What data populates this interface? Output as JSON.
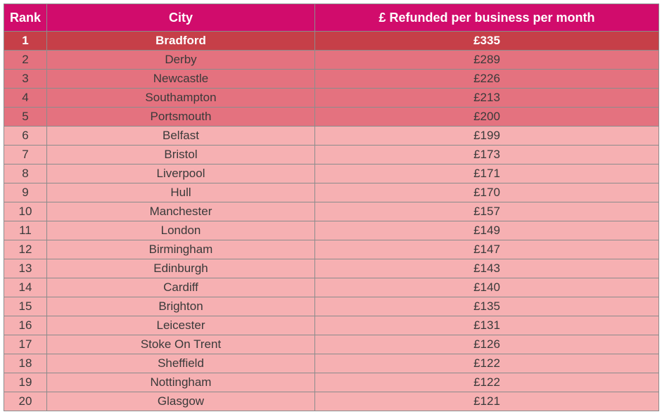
{
  "table": {
    "headers": {
      "rank": "Rank",
      "city": "City",
      "value": "£ Refunded per business per month"
    },
    "rows": [
      {
        "rank": "1",
        "city": "Bradford",
        "value": "£335",
        "tier": "top"
      },
      {
        "rank": "2",
        "city": "Derby",
        "value": "£289",
        "tier": "mid"
      },
      {
        "rank": "3",
        "city": "Newcastle",
        "value": "£226",
        "tier": "mid"
      },
      {
        "rank": "4",
        "city": "Southampton",
        "value": "£213",
        "tier": "mid"
      },
      {
        "rank": "5",
        "city": "Portsmouth",
        "value": "£200",
        "tier": "mid"
      },
      {
        "rank": "6",
        "city": "Belfast",
        "value": "£199",
        "tier": "low"
      },
      {
        "rank": "7",
        "city": "Bristol",
        "value": "£173",
        "tier": "low"
      },
      {
        "rank": "8",
        "city": "Liverpool",
        "value": "£171",
        "tier": "low"
      },
      {
        "rank": "9",
        "city": "Hull",
        "value": "£170",
        "tier": "low"
      },
      {
        "rank": "10",
        "city": "Manchester",
        "value": "£157",
        "tier": "low"
      },
      {
        "rank": "11",
        "city": "London",
        "value": "£149",
        "tier": "low"
      },
      {
        "rank": "12",
        "city": "Birmingham",
        "value": "£147",
        "tier": "low"
      },
      {
        "rank": "13",
        "city": "Edinburgh",
        "value": "£143",
        "tier": "low"
      },
      {
        "rank": "14",
        "city": "Cardiff",
        "value": "£140",
        "tier": "low"
      },
      {
        "rank": "15",
        "city": "Brighton",
        "value": "£135",
        "tier": "low"
      },
      {
        "rank": "16",
        "city": "Leicester",
        "value": "£131",
        "tier": "low"
      },
      {
        "rank": "17",
        "city": "Stoke On Trent",
        "value": "£126",
        "tier": "low"
      },
      {
        "rank": "18",
        "city": "Sheffield",
        "value": "£122",
        "tier": "low"
      },
      {
        "rank": "19",
        "city": "Nottingham",
        "value": "£122",
        "tier": "low"
      },
      {
        "rank": "20",
        "city": "Glasgow",
        "value": "£121",
        "tier": "low"
      }
    ]
  },
  "colors": {
    "header": "#d10c6c",
    "top_row": "#c63f48",
    "mid_rows": "#e4727f",
    "low_rows": "#f6b0b2"
  }
}
